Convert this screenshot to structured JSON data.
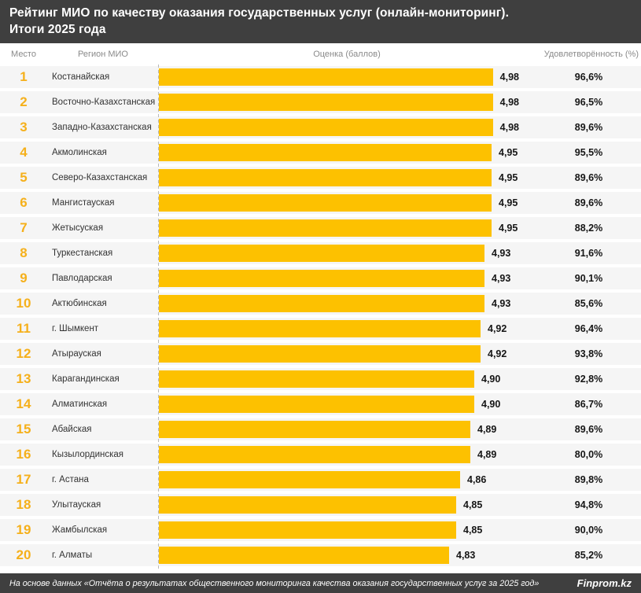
{
  "title": {
    "line1": "Рейтинг МИО по качеству оказания государственных услуг (онлайн-мониторинг).",
    "line2": "Итоги 2025 года"
  },
  "columns": {
    "rank": "Место",
    "region": "Регион МИО",
    "score": "Оценка (баллов)",
    "satisfaction": "Удовлетворённость (%)"
  },
  "rows": [
    {
      "rank": "1",
      "region": "Костанайская",
      "score": "4,98",
      "score_value": 4.98,
      "satisfaction": "96,6%"
    },
    {
      "rank": "2",
      "region": "Восточно-Казахстанская",
      "score": "4,98",
      "score_value": 4.98,
      "satisfaction": "96,5%"
    },
    {
      "rank": "3",
      "region": "Западно-Казахстанская",
      "score": "4,98",
      "score_value": 4.98,
      "satisfaction": "89,6%"
    },
    {
      "rank": "4",
      "region": "Акмолинская",
      "score": "4,95",
      "score_value": 4.95,
      "satisfaction": "95,5%"
    },
    {
      "rank": "5",
      "region": "Северо-Казахстанская",
      "score": "4,95",
      "score_value": 4.95,
      "satisfaction": "89,6%"
    },
    {
      "rank": "6",
      "region": "Мангистауская",
      "score": "4,95",
      "score_value": 4.95,
      "satisfaction": "89,6%"
    },
    {
      "rank": "7",
      "region": "Жетысуская",
      "score": "4,95",
      "score_value": 4.95,
      "satisfaction": "88,2%"
    },
    {
      "rank": "8",
      "region": "Туркестанская",
      "score": "4,93",
      "score_value": 4.93,
      "satisfaction": "91,6%"
    },
    {
      "rank": "9",
      "region": "Павлодарская",
      "score": "4,93",
      "score_value": 4.93,
      "satisfaction": "90,1%"
    },
    {
      "rank": "10",
      "region": "Актюбинская",
      "score": "4,93",
      "score_value": 4.93,
      "satisfaction": "85,6%"
    },
    {
      "rank": "11",
      "region": "г. Шымкент",
      "score": "4,92",
      "score_value": 4.92,
      "satisfaction": "96,4%"
    },
    {
      "rank": "12",
      "region": "Атырауская",
      "score": "4,92",
      "score_value": 4.92,
      "satisfaction": "93,8%"
    },
    {
      "rank": "13",
      "region": "Карагандинская",
      "score": "4,90",
      "score_value": 4.9,
      "satisfaction": "92,8%"
    },
    {
      "rank": "14",
      "region": "Алматинская",
      "score": "4,90",
      "score_value": 4.9,
      "satisfaction": "86,7%"
    },
    {
      "rank": "15",
      "region": "Абайская",
      "score": "4,89",
      "score_value": 4.89,
      "satisfaction": "89,6%"
    },
    {
      "rank": "16",
      "region": "Кызылординская",
      "score": "4,89",
      "score_value": 4.89,
      "satisfaction": "80,0%"
    },
    {
      "rank": "17",
      "region": "г. Астана",
      "score": "4,86",
      "score_value": 4.86,
      "satisfaction": "89,8%"
    },
    {
      "rank": "18",
      "region": "Улытауская",
      "score": "4,85",
      "score_value": 4.85,
      "satisfaction": "94,8%"
    },
    {
      "rank": "19",
      "region": "Жамбылская",
      "score": "4,85",
      "score_value": 4.85,
      "satisfaction": "90,0%"
    },
    {
      "rank": "20",
      "region": "г. Алматы",
      "score": "4,83",
      "score_value": 4.83,
      "satisfaction": "85,2%"
    }
  ],
  "footer": {
    "source": "На основе данных «Отчёта о результатах общественного мониторинга качества оказания государственных услуг за 2025 год»",
    "brand": "Finprom.kz"
  },
  "colors": {
    "bar": "#FDC100",
    "rank": "#F5B01B",
    "header_bg": "#3F3F3F",
    "row_bg": "#F5F5F5"
  },
  "chart_data": {
    "type": "bar",
    "orientation": "horizontal",
    "title": "Рейтинг МИО по качеству оказания государственных услуг (онлайн-мониторинг). Итоги 2025 года",
    "categories": [
      "Костанайская",
      "Восточно-Казахстанская",
      "Западно-Казахстанская",
      "Акмолинская",
      "Северо-Казахстанская",
      "Мангистауская",
      "Жетысуская",
      "Туркестанская",
      "Павлодарская",
      "Актюбинская",
      "г. Шымкент",
      "Атырауская",
      "Карагандинская",
      "Алматинская",
      "Абайская",
      "Кызылординская",
      "г. Астана",
      "Улытауская",
      "Жамбылская",
      "г. Алматы"
    ],
    "series": [
      {
        "name": "Оценка (баллов)",
        "values": [
          4.98,
          4.98,
          4.98,
          4.95,
          4.95,
          4.95,
          4.95,
          4.93,
          4.93,
          4.93,
          4.92,
          4.92,
          4.9,
          4.9,
          4.89,
          4.89,
          4.86,
          4.85,
          4.85,
          4.83
        ]
      },
      {
        "name": "Удовлетворённость (%)",
        "values": [
          96.6,
          96.5,
          89.6,
          95.5,
          89.6,
          89.6,
          88.2,
          91.6,
          90.1,
          85.6,
          96.4,
          93.8,
          92.8,
          86.7,
          89.6,
          80.0,
          89.8,
          94.8,
          90.0,
          85.2
        ]
      }
    ],
    "ranks": [
      1,
      2,
      3,
      4,
      5,
      6,
      7,
      8,
      9,
      10,
      11,
      12,
      13,
      14,
      15,
      16,
      17,
      18,
      19,
      20
    ],
    "xlabel": "Оценка (баллов)",
    "ylabel": "Регион МИО",
    "xlim_implied": [
      4.0,
      5.0
    ],
    "grid": false,
    "legend_position": "none",
    "value_labels": true
  }
}
